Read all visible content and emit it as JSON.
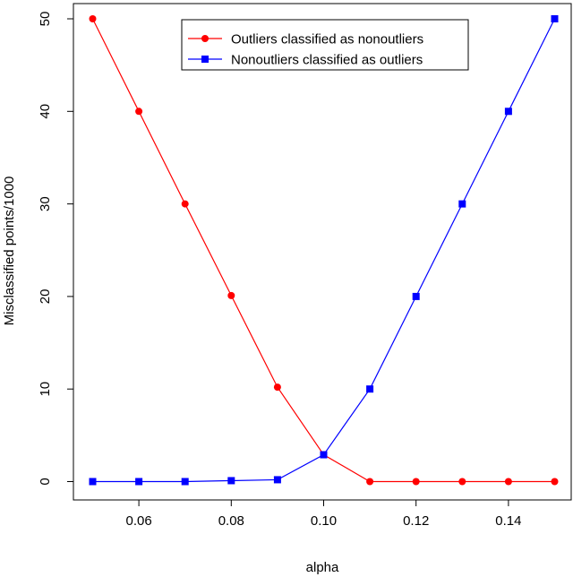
{
  "chart_data": {
    "type": "line",
    "xlabel": "alpha",
    "ylabel": "Misclassified points/1000",
    "x": [
      0.05,
      0.06,
      0.07,
      0.08,
      0.09,
      0.1,
      0.11,
      0.12,
      0.13,
      0.14,
      0.15
    ],
    "xlim": [
      0.05,
      0.15
    ],
    "ylim": [
      0,
      50
    ],
    "x_ticks": [
      "0.06",
      "0.08",
      "0.10",
      "0.12",
      "0.14"
    ],
    "y_ticks": [
      "0",
      "10",
      "20",
      "30",
      "40",
      "50"
    ],
    "grid": false,
    "legend_position": "top-center",
    "series": [
      {
        "name": "Outliers classified as nonoutliers",
        "color": "#ff0000",
        "marker": "circle",
        "values": [
          50,
          40,
          30,
          20.1,
          10.2,
          2.9,
          0,
          0,
          0,
          0,
          0
        ]
      },
      {
        "name": "Nonoutliers classified as outliers",
        "color": "#0000ff",
        "marker": "square",
        "values": [
          0,
          0,
          0,
          0.1,
          0.2,
          2.9,
          10,
          20,
          30,
          40,
          50
        ]
      }
    ]
  }
}
